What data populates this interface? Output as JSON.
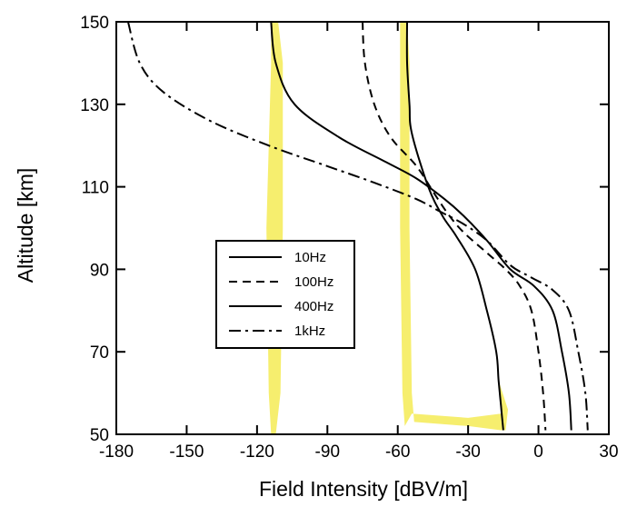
{
  "chart_data": {
    "type": "line",
    "title": "",
    "xlabel": "Field Intensity [dBV/m]",
    "ylabel": "Altitude [km]",
    "xlim": [
      -180,
      30
    ],
    "ylim": [
      50,
      150
    ],
    "xticks": [
      -180,
      -150,
      -120,
      -90,
      -60,
      -30,
      0,
      30
    ],
    "yticks": [
      50,
      70,
      90,
      110,
      130,
      150
    ],
    "xtick_labels": [
      "-180",
      "-150",
      "-120",
      "-90",
      "-60",
      "-30",
      "0",
      "30"
    ],
    "ytick_labels": [
      "50",
      "70",
      "90",
      "110",
      "130",
      "150"
    ],
    "grid": false,
    "legend_position": "center-left",
    "series": [
      {
        "name": "10Hz",
        "style": "solid",
        "color": "#000000",
        "x": [
          -56,
          -56,
          -55,
          -54,
          -47,
          -41,
          -35,
          -27,
          -22,
          -18,
          -17,
          -16,
          -15
        ],
        "y": [
          150,
          140,
          130,
          123,
          110,
          103,
          98,
          90,
          80,
          70,
          63,
          57,
          51
        ]
      },
      {
        "name": "100Hz",
        "style": "dashed",
        "color": "#000000",
        "x": [
          -75,
          -74,
          -70,
          -63,
          -52,
          -44,
          -38,
          -32,
          -22,
          -14,
          -8,
          -3,
          0,
          2,
          3
        ],
        "y": [
          150,
          140,
          130,
          122,
          115,
          108,
          103,
          99,
          94,
          90,
          86,
          80,
          70,
          60,
          51
        ]
      },
      {
        "name": "400Hz",
        "style": "solid",
        "color": "#000000",
        "x": [
          -114,
          -112,
          -104,
          -85,
          -65,
          -52,
          -40,
          -32,
          -22,
          -12,
          -2,
          6,
          10,
          13,
          14
        ],
        "y": [
          150,
          140,
          130,
          122,
          116,
          112,
          107,
          103,
          97,
          90,
          86,
          80,
          70,
          60,
          51
        ]
      },
      {
        "name": "1kHz",
        "style": "dashdot",
        "color": "#000000",
        "x": [
          -175,
          -170,
          -160,
          -140,
          -115,
          -90,
          -70,
          -52,
          -42,
          -32,
          -22,
          -12,
          -3,
          6,
          13,
          17,
          20,
          21
        ],
        "y": [
          150,
          140,
          133,
          126,
          120,
          115,
          111,
          107,
          104,
          101,
          97,
          91,
          88,
          85,
          80,
          70,
          60,
          51
        ]
      }
    ],
    "highlights": [
      {
        "color": "#f6ee6e",
        "x": [
          -114,
          -111,
          -109,
          -109,
          -110,
          -112,
          -114,
          -115,
          -116,
          -114
        ],
        "y": [
          150,
          150,
          140,
          100,
          60,
          50,
          50,
          60,
          100,
          140
        ]
      },
      {
        "color": "#f6ee6e",
        "x": [
          -59,
          -56,
          -55,
          -55,
          -54,
          -53,
          -30,
          -16,
          -14,
          -13,
          -17,
          -16,
          -30,
          -54,
          -57,
          -58,
          -59,
          -59
        ],
        "y": [
          150,
          150,
          140,
          100,
          60,
          53,
          52,
          51,
          51,
          56,
          63,
          55,
          54,
          55,
          52,
          60,
          100,
          140
        ]
      }
    ]
  }
}
